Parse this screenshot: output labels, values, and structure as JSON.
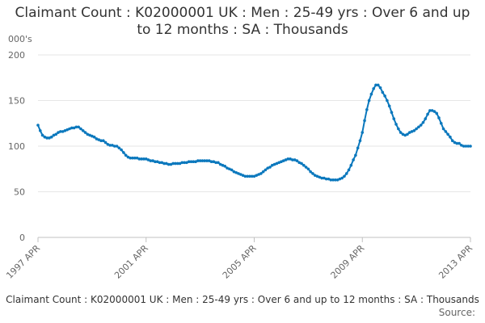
{
  "chart_data": {
    "type": "line",
    "title": "Claimant Count : K02000001 UK : Men : 25-49 yrs : Over 6 and up to 12 months : SA : Thousands",
    "y_label": "000's",
    "footer": "Claimant Count : K02000001 UK : Men : 25-49 yrs : Over 6 and up to 12 months : SA : Thousands",
    "source": "Source:",
    "color": "#0b78bd",
    "grid": true,
    "ylim": [
      0,
      200
    ],
    "yticks": [
      0,
      50,
      100,
      150,
      200
    ],
    "categories": [
      "1997 APR",
      null,
      null,
      null,
      null,
      null,
      null,
      null,
      null,
      null,
      null,
      null,
      null,
      null,
      null,
      null,
      null,
      null,
      null,
      null,
      null,
      null,
      null,
      null,
      null,
      null,
      null,
      null,
      null,
      null,
      null,
      null,
      null,
      null,
      null,
      null,
      null,
      null,
      null,
      null,
      null,
      null,
      null,
      null,
      null,
      null,
      null,
      null,
      "2001 APR",
      null,
      null,
      null,
      null,
      null,
      null,
      null,
      null,
      null,
      null,
      null,
      null,
      null,
      null,
      null,
      null,
      null,
      null,
      null,
      null,
      null,
      null,
      null,
      null,
      null,
      null,
      null,
      null,
      null,
      null,
      null,
      null,
      null,
      null,
      null,
      null,
      null,
      null,
      null,
      null,
      null,
      null,
      null,
      null,
      null,
      null,
      null,
      "2005 APR",
      null,
      null,
      null,
      null,
      null,
      null,
      null,
      null,
      null,
      null,
      null,
      null,
      null,
      null,
      null,
      null,
      null,
      null,
      null,
      null,
      null,
      null,
      null,
      null,
      null,
      null,
      null,
      null,
      null,
      null,
      null,
      null,
      null,
      null,
      null,
      null,
      null,
      null,
      null,
      null,
      null,
      null,
      null,
      null,
      null,
      null,
      null,
      "2009 APR",
      null,
      null,
      null,
      null,
      null,
      null,
      null,
      null,
      null,
      null,
      null,
      null,
      null,
      null,
      null,
      null,
      null,
      null,
      null,
      null,
      null,
      null,
      null,
      null,
      null,
      null,
      null,
      null,
      null,
      null,
      null,
      null,
      null,
      null,
      null,
      null,
      null,
      null,
      null,
      null,
      null,
      null,
      null,
      null,
      null,
      null,
      null,
      "2013 APR"
    ],
    "values": [
      123,
      117,
      112,
      110,
      109,
      109,
      110,
      112,
      113,
      115,
      116,
      116,
      117,
      118,
      119,
      120,
      120,
      121,
      121,
      119,
      117,
      115,
      113,
      112,
      111,
      110,
      108,
      107,
      106,
      106,
      104,
      102,
      101,
      101,
      100,
      100,
      98,
      96,
      93,
      90,
      88,
      87,
      87,
      87,
      87,
      86,
      86,
      86,
      86,
      85,
      84,
      84,
      83,
      83,
      82,
      82,
      81,
      81,
      80,
      80,
      81,
      81,
      81,
      81,
      82,
      82,
      82,
      83,
      83,
      83,
      83,
      84,
      84,
      84,
      84,
      84,
      84,
      83,
      83,
      82,
      82,
      80,
      79,
      78,
      76,
      75,
      74,
      72,
      71,
      70,
      69,
      68,
      67,
      67,
      67,
      67,
      67,
      68,
      69,
      70,
      72,
      74,
      76,
      77,
      79,
      80,
      81,
      82,
      83,
      84,
      85,
      86,
      86,
      85,
      85,
      84,
      82,
      81,
      79,
      77,
      75,
      72,
      70,
      68,
      67,
      66,
      65,
      65,
      64,
      64,
      63,
      63,
      63,
      63,
      64,
      65,
      67,
      70,
      74,
      79,
      85,
      90,
      98,
      106,
      115,
      128,
      140,
      150,
      157,
      163,
      167,
      167,
      164,
      159,
      155,
      150,
      144,
      137,
      130,
      124,
      119,
      115,
      113,
      112,
      113,
      115,
      116,
      117,
      119,
      121,
      123,
      126,
      130,
      135,
      139,
      139,
      138,
      136,
      131,
      125,
      119,
      116,
      113,
      110,
      106,
      104,
      103,
      103,
      101,
      100,
      100,
      100,
      100
    ]
  }
}
